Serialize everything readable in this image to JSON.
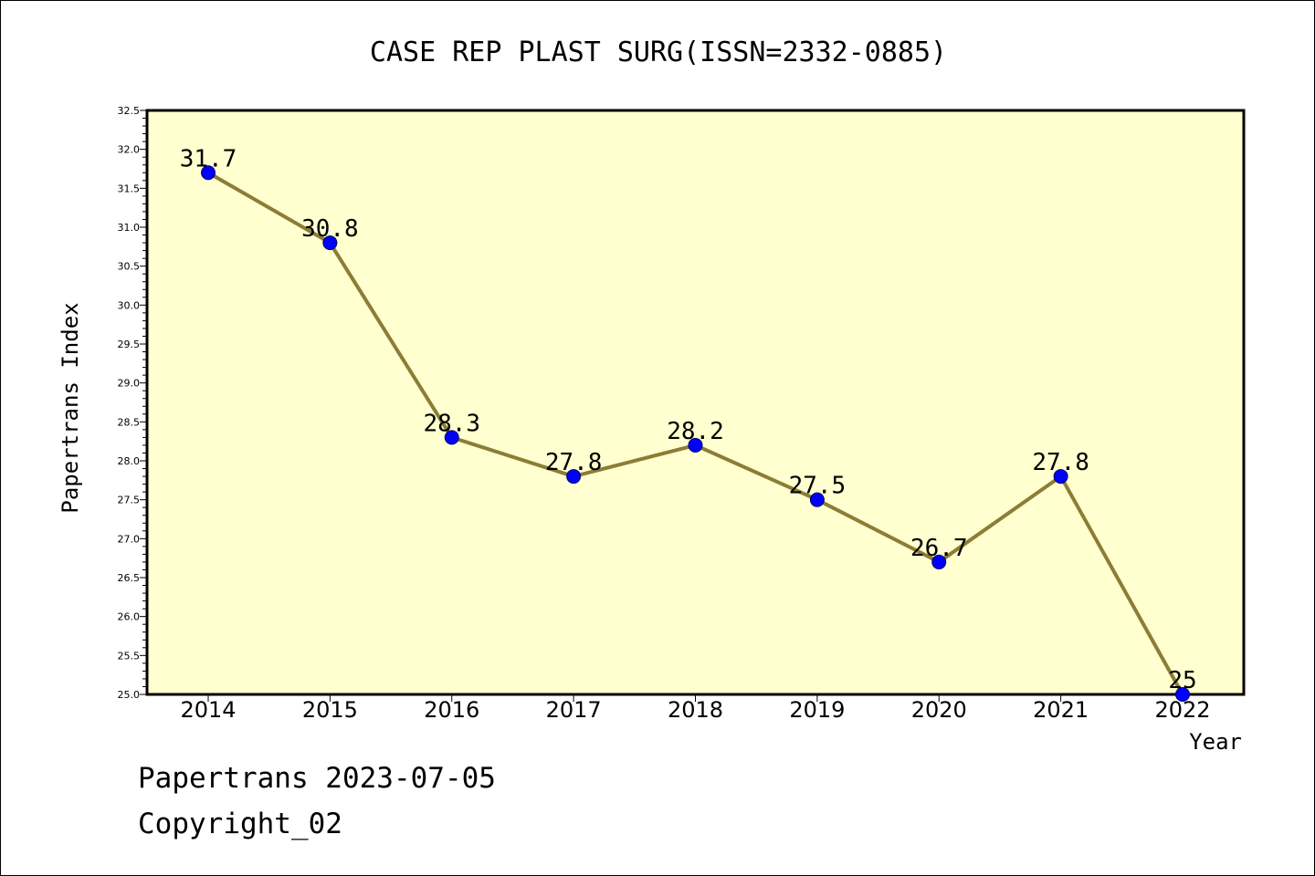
{
  "chart_data": {
    "type": "line",
    "title": "CASE REP PLAST SURG(ISSN=2332-0885)",
    "xlabel": "Year",
    "ylabel": "Papertrans Index",
    "categories": [
      "2014",
      "2015",
      "2016",
      "2017",
      "2018",
      "2019",
      "2020",
      "2021",
      "2022"
    ],
    "series": [
      {
        "values": [
          31.7,
          30.8,
          28.3,
          27.8,
          28.2,
          27.5,
          26.7,
          27.8,
          25.0
        ]
      }
    ],
    "data_labels": [
      "31.7",
      "30.8",
      "28.3",
      "27.8",
      "28.2",
      "27.5",
      "26.7",
      "27.8",
      "25"
    ],
    "ylim": [
      25.0,
      32.5
    ],
    "yticks": [
      "25.0",
      "25.5",
      "26.0",
      "26.5",
      "27.0",
      "27.5",
      "28.0",
      "28.5",
      "29.0",
      "29.5",
      "30.0",
      "30.5",
      "31.0",
      "31.5",
      "32.0",
      "32.5"
    ],
    "grid": false,
    "colors": {
      "plot_background": "#ffffd0",
      "line": "#8b7d35",
      "marker": "#0000ff",
      "marker_edge": "#000066"
    }
  },
  "footer": {
    "line1": "Papertrans 2023-07-05",
    "line2": "Copyright_02"
  }
}
